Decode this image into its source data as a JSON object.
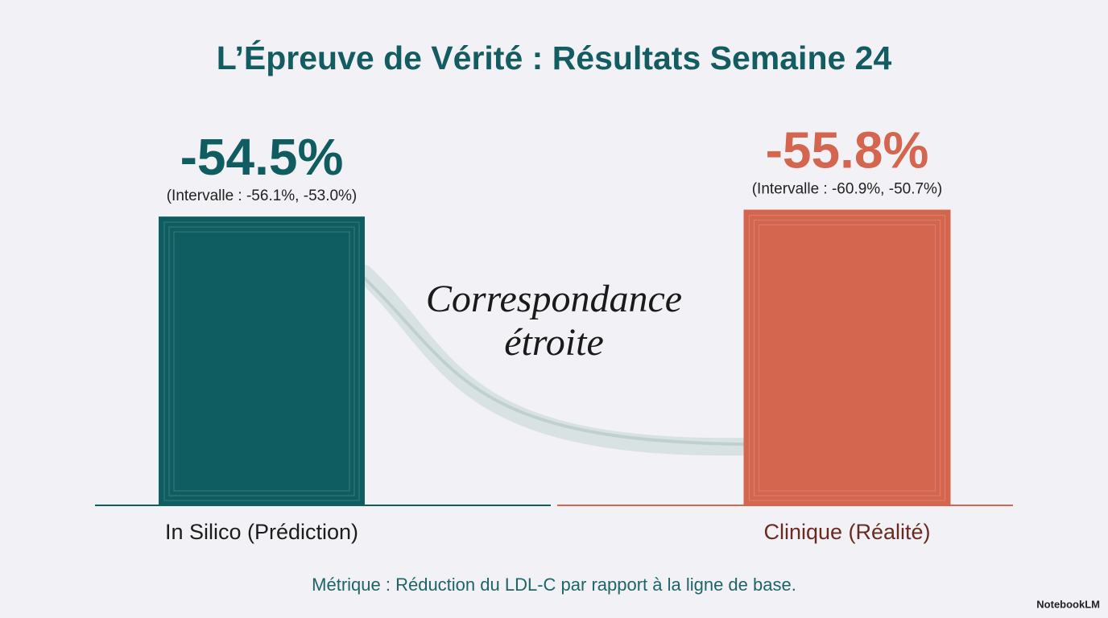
{
  "chart_data": {
    "type": "bar",
    "title": "L’Épreuve de Vérité : Résultats Semaine 24",
    "categories": [
      "In Silico (Prédiction)",
      "Clinique (Réalité)"
    ],
    "values": [
      -54.5,
      -55.8
    ],
    "value_labels": [
      "-54.5%",
      "-55.8%"
    ],
    "interval_labels": [
      "(Intervalle : -56.1%, -53.0%)",
      "(Intervalle : -60.9%, -50.7%)"
    ],
    "colors": [
      "#0f5d60",
      "#d4654f"
    ],
    "category_colors": [
      "#1c1c1c",
      "#6b2a20"
    ],
    "ylim": [
      0,
      -60
    ],
    "annotation": [
      "Correspondance",
      "étroite"
    ],
    "caption": "Métrique : Réduction du LDL-C par rapport à la ligne de base.",
    "watermark": "NotebookLM"
  }
}
